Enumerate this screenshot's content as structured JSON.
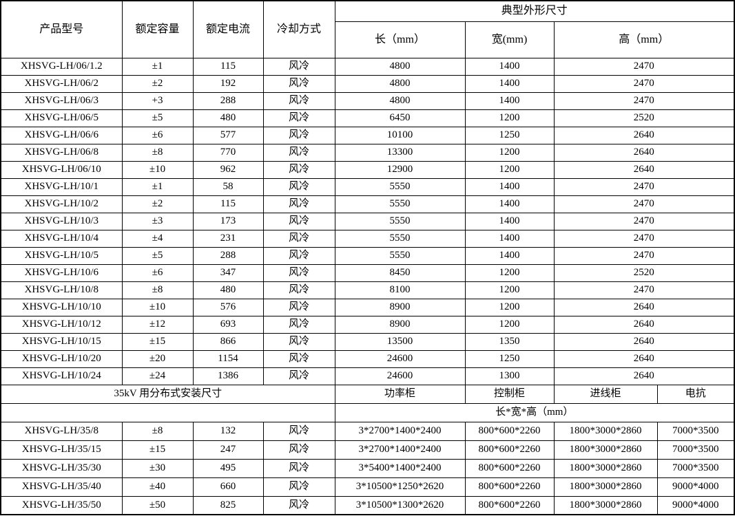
{
  "table": {
    "header": {
      "col_product": "产品型号",
      "col_capacity": "额定容量",
      "col_current": "额定电流",
      "col_cooling": "冷却方式",
      "dims_group": "典型外形尺寸",
      "col_length": "长（mm）",
      "col_width": "宽(mm)",
      "col_height": "高（mm）"
    },
    "rows_main": [
      [
        "XHSVG-LH/06/1.2",
        "±1",
        "115",
        "风冷",
        "4800",
        "1400",
        "2470"
      ],
      [
        "XHSVG-LH/06/2",
        "±2",
        "192",
        "风冷",
        "4800",
        "1400",
        "2470"
      ],
      [
        "XHSVG-LH/06/3",
        "+3",
        "288",
        "风冷",
        "4800",
        "1400",
        "2470"
      ],
      [
        "XHSVG-LH/06/5",
        "±5",
        "480",
        "风冷",
        "6450",
        "1200",
        "2520"
      ],
      [
        "XHSVG-LH/06/6",
        "±6",
        "577",
        "风冷",
        "10100",
        "1250",
        "2640"
      ],
      [
        "XHSVG-LH/06/8",
        "±8",
        "770",
        "风冷",
        "13300",
        "1200",
        "2640"
      ],
      [
        "XHSVG-LH/06/10",
        "±10",
        "962",
        "风冷",
        "12900",
        "1200",
        "2640"
      ],
      [
        "XHSVG-LH/10/1",
        "±1",
        "58",
        "风冷",
        "5550",
        "1400",
        "2470"
      ],
      [
        "XHSVG-LH/10/2",
        "±2",
        "115",
        "风冷",
        "5550",
        "1400",
        "2470"
      ],
      [
        "XHSVG-LH/10/3",
        "±3",
        "173",
        "风冷",
        "5550",
        "1400",
        "2470"
      ],
      [
        "XHSVG-LH/10/4",
        "±4",
        "231",
        "风冷",
        "5550",
        "1400",
        "2470"
      ],
      [
        "XHSVG-LH/10/5",
        "±5",
        "288",
        "风冷",
        "5550",
        "1400",
        "2470"
      ],
      [
        "XHSVG-LH/10/6",
        "±6",
        "347",
        "风冷",
        "8450",
        "1200",
        "2520"
      ],
      [
        "XHSVG-LH/10/8",
        "±8",
        "480",
        "风冷",
        "8100",
        "1200",
        "2470"
      ],
      [
        "XHSVG-LH/10/10",
        "±10",
        "576",
        "风冷",
        "8900",
        "1200",
        "2640"
      ],
      [
        "XHSVG-LH/10/12",
        "±12",
        "693",
        "风冷",
        "8900",
        "1200",
        "2640"
      ],
      [
        "XHSVG-LH/10/15",
        "±15",
        "866",
        "风冷",
        "13500",
        "1350",
        "2640"
      ],
      [
        "XHSVG-LH/10/20",
        "±20",
        "1154",
        "风冷",
        "24600",
        "1250",
        "2640"
      ],
      [
        "XHSVG-LH/10/24",
        "±24",
        "1386",
        "风冷",
        "24600",
        "1300",
        "2640"
      ]
    ],
    "section_35kv": {
      "title": "35kV 用分布式安装尺寸",
      "col_power_cabinet": "功率柜",
      "col_control_cabinet": "控制柜",
      "col_incoming_cabinet": "进线柜",
      "col_reactor": "电抗",
      "dims_label": "长*宽*高（mm）"
    },
    "rows_35kv": [
      [
        "XHSVG-LH/35/8",
        "±8",
        "132",
        "风冷",
        "3*2700*1400*2400",
        "800*600*2260",
        "1800*3000*2860",
        "7000*3500"
      ],
      [
        "XHSVG-LH/35/15",
        "±15",
        "247",
        "风冷",
        "3*2700*1400*2400",
        "800*600*2260",
        "1800*3000*2860",
        "7000*3500"
      ],
      [
        "XHSVG-LH/35/30",
        "±30",
        "495",
        "风冷",
        "3*5400*1400*2400",
        "800*600*2260",
        "1800*3000*2860",
        "7000*3500"
      ],
      [
        "XHSVG-LH/35/40",
        "±40",
        "660",
        "风冷",
        "3*10500*1250*2620",
        "800*600*2260",
        "1800*3000*2860",
        "9000*4000"
      ],
      [
        "XHSVG-LH/35/50",
        "±50",
        "825",
        "风冷",
        "3*10500*1300*2620",
        "800*600*2260",
        "1800*3000*2860",
        "9000*4000"
      ]
    ]
  }
}
